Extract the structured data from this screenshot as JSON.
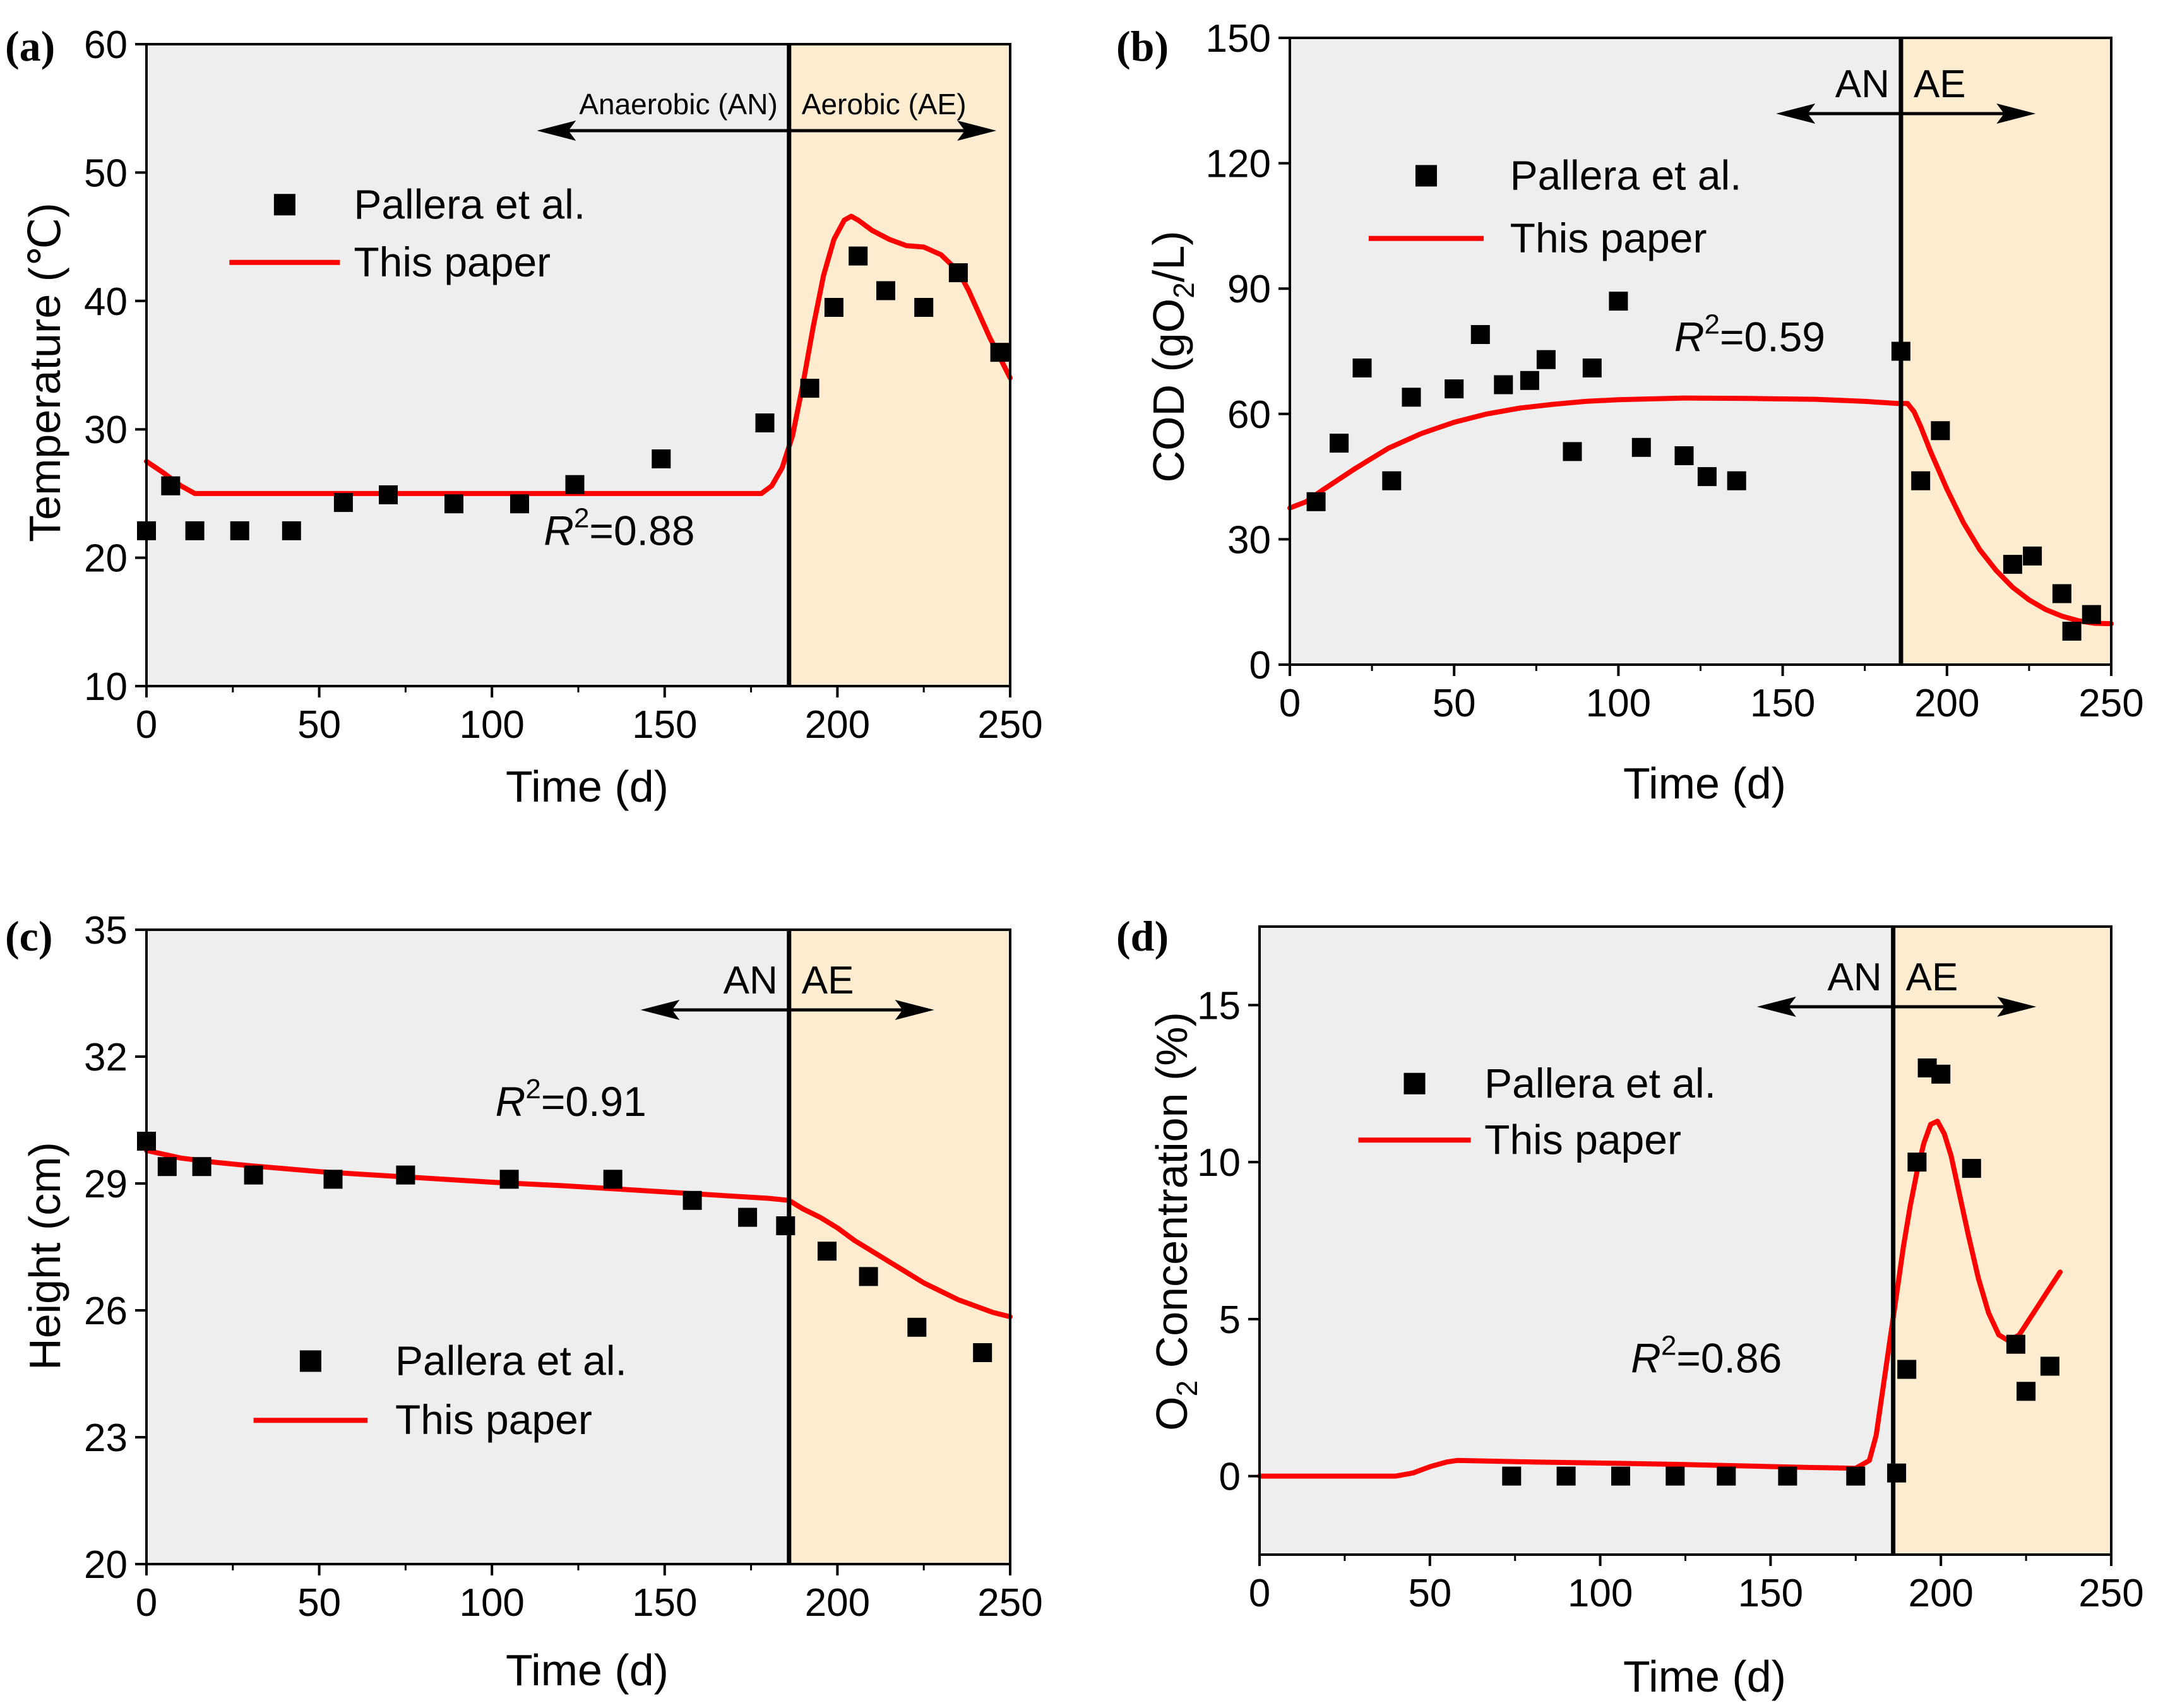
{
  "colors": {
    "an_region": "#eeeeee",
    "ae_region": "#fdecd0",
    "model_line": "#ff0000",
    "markers": "#000000"
  },
  "chart_data": [
    {
      "type": "scatter",
      "panel": "(a)",
      "xlabel": "Time (d)",
      "ylabel": "Temperature (℃)",
      "xlim": [
        0,
        250
      ],
      "ylim": [
        10,
        60
      ],
      "xticks": [
        0,
        50,
        100,
        150,
        200,
        250
      ],
      "yticks": [
        10,
        20,
        30,
        40,
        50,
        60
      ],
      "transition_x": 186,
      "arrow": {
        "from": 113,
        "to": 246,
        "left_label": "Anaerobic (AN)",
        "right_label": "Aerobic (AE)"
      },
      "r2": {
        "value": "=0.88",
        "x": 115,
        "y": 21
      },
      "legend": {
        "scatter": "Pallera et al.",
        "line": "This paper",
        "x0": 24,
        "x1": 56,
        "x2": 60,
        "y_scatter": 47.5,
        "y_line": 43
      },
      "series": [
        {
          "name": "Pallera et al.",
          "kind": "scatter",
          "x": [
            0,
            7,
            14,
            27,
            42,
            57,
            70,
            89,
            108,
            124,
            149,
            179,
            192,
            199,
            206,
            214,
            225,
            235,
            247
          ],
          "y": [
            22.1,
            25.6,
            22.1,
            22.1,
            22.1,
            24.3,
            24.9,
            24.2,
            24.2,
            25.7,
            27.7,
            30.5,
            33.2,
            39.5,
            43.5,
            40.8,
            39.5,
            42.2,
            36.0
          ]
        },
        {
          "name": "This paper",
          "kind": "line",
          "x": [
            0,
            5,
            10,
            14,
            20,
            60,
            100,
            140,
            170,
            178,
            181,
            184,
            187,
            190,
            193,
            196,
            199,
            202,
            204,
            206,
            210,
            215,
            220,
            225,
            230,
            235,
            238,
            241,
            244,
            247,
            250
          ],
          "y": [
            27.5,
            26.6,
            25.6,
            25.0,
            25.0,
            25.0,
            25.0,
            25.0,
            25.0,
            25.0,
            25.6,
            27.0,
            29.5,
            33.5,
            38.0,
            42.0,
            44.8,
            46.3,
            46.6,
            46.3,
            45.5,
            44.8,
            44.3,
            44.2,
            43.6,
            42.3,
            40.8,
            39.0,
            37.2,
            35.6,
            34.0
          ]
        }
      ]
    },
    {
      "type": "scatter",
      "panel": "(b)",
      "xlabel": "Time (d)",
      "ylabel": "COD (gO2/L)",
      "xlim": [
        0,
        250
      ],
      "ylim": [
        0,
        150
      ],
      "xticks": [
        0,
        50,
        100,
        150,
        200,
        250
      ],
      "yticks": [
        0,
        30,
        60,
        90,
        120,
        150
      ],
      "transition_x": 186,
      "arrow": {
        "from": 148,
        "to": 227,
        "left_label": "AN",
        "right_label": "AE"
      },
      "r2": {
        "value": "=0.59",
        "x": 117,
        "y": 75
      },
      "legend": {
        "scatter": "Pallera et al.",
        "line": "This paper",
        "x0": 24,
        "x1": 59,
        "x2": 67,
        "y_scatter": 117,
        "y_line": 102
      },
      "series": [
        {
          "name": "Pallera et al.",
          "kind": "scatter",
          "x": [
            8,
            15,
            22,
            31,
            37,
            50,
            58,
            65,
            73,
            78,
            86,
            92,
            100,
            107,
            120,
            127,
            136,
            186,
            192,
            198,
            220,
            226,
            235,
            238,
            244
          ],
          "y": [
            39,
            53,
            71,
            44,
            64,
            66,
            79,
            67,
            68,
            73,
            51,
            71,
            87,
            52,
            50,
            45,
            44,
            75,
            44,
            56,
            24,
            26,
            17,
            8,
            12
          ]
        },
        {
          "name": "This paper",
          "kind": "line",
          "x": [
            0,
            5,
            10,
            20,
            30,
            40,
            50,
            60,
            70,
            80,
            90,
            100,
            120,
            140,
            160,
            175,
            185,
            188,
            190,
            192,
            195,
            200,
            205,
            210,
            215,
            220,
            225,
            230,
            235,
            240,
            245,
            250
          ],
          "y": [
            37.5,
            39,
            41.8,
            47,
            51.8,
            55.3,
            58,
            60,
            61.4,
            62.3,
            63,
            63.4,
            63.8,
            63.7,
            63.5,
            63.0,
            62.5,
            62.5,
            60.5,
            57,
            51,
            42,
            34,
            27.5,
            22.5,
            18.5,
            15.5,
            13.2,
            11.6,
            10.5,
            9.9,
            9.8
          ]
        }
      ]
    },
    {
      "type": "scatter",
      "panel": "(c)",
      "xlabel": "Time (d)",
      "ylabel": "Height (cm)",
      "xlim": [
        0,
        250
      ],
      "ylim": [
        20,
        35
      ],
      "xticks": [
        0,
        50,
        100,
        150,
        200,
        250
      ],
      "yticks": [
        20,
        23,
        26,
        29,
        32,
        35
      ],
      "transition_x": 186,
      "arrow": {
        "from": 143,
        "to": 228,
        "left_label": "AN",
        "right_label": "AE"
      },
      "r2": {
        "value": "=0.91",
        "x": 101,
        "y": 30.6
      },
      "legend": {
        "scatter": "Pallera et al.",
        "line": "This paper",
        "x0": 31,
        "x1": 64,
        "x2": 72,
        "y_scatter": 24.8,
        "y_line": 23.4
      },
      "series": [
        {
          "name": "Pallera et al.",
          "kind": "scatter",
          "x": [
            0,
            6,
            16,
            31,
            54,
            75,
            105,
            135,
            158,
            174,
            185,
            197,
            209,
            223,
            242
          ],
          "y": [
            30.0,
            29.4,
            29.4,
            29.2,
            29.1,
            29.2,
            29.1,
            29.1,
            28.6,
            28.2,
            28.0,
            27.4,
            26.8,
            25.6,
            25.0
          ]
        },
        {
          "name": "This paper",
          "kind": "line",
          "x": [
            0,
            10,
            20,
            30,
            40,
            50,
            60,
            80,
            100,
            120,
            140,
            160,
            180,
            186,
            190,
            195,
            200,
            205,
            210,
            215,
            220,
            225,
            230,
            235,
            240,
            245,
            250
          ],
          "y": [
            29.78,
            29.6,
            29.5,
            29.42,
            29.35,
            29.28,
            29.23,
            29.13,
            29.03,
            28.95,
            28.85,
            28.75,
            28.65,
            28.6,
            28.4,
            28.2,
            27.95,
            27.65,
            27.4,
            27.15,
            26.9,
            26.65,
            26.45,
            26.25,
            26.1,
            25.95,
            25.85
          ]
        }
      ]
    },
    {
      "type": "scatter",
      "panel": "(d)",
      "xlabel": "Time (d)",
      "ylabel": "O2 Concentration (%)",
      "xlim": [
        0,
        250
      ],
      "ylim": [
        -2.5,
        17.5
      ],
      "xticks": [
        0,
        50,
        100,
        150,
        200,
        250
      ],
      "yticks": [
        0,
        5,
        10,
        15
      ],
      "transition_x": 186,
      "arrow": {
        "from": 146,
        "to": 228,
        "left_label": "AN",
        "right_label": "AE"
      },
      "r2": {
        "value": "=0.86",
        "x": 109,
        "y": 3.3
      },
      "legend": {
        "scatter": "Pallera et al.",
        "line": "This paper",
        "x0": 29,
        "x1": 62,
        "x2": 66,
        "y_scatter": 12.5,
        "y_line": 10.7
      },
      "series": [
        {
          "name": "Pallera et al.",
          "kind": "scatter",
          "x": [
            74,
            90,
            106,
            122,
            137,
            155,
            175,
            187,
            190,
            193,
            196,
            200,
            209,
            222,
            225,
            232
          ],
          "y": [
            0,
            0,
            0,
            0,
            0,
            0,
            0,
            0.1,
            3.4,
            10.0,
            13.0,
            12.8,
            9.8,
            4.2,
            2.7,
            3.5
          ]
        },
        {
          "name": "This paper",
          "kind": "line",
          "x": [
            0,
            30,
            40,
            45,
            50,
            55,
            58,
            80,
            120,
            160,
            175,
            179,
            181,
            183,
            185,
            187,
            189,
            191,
            193,
            195,
            197,
            199,
            201,
            203,
            205,
            208,
            211,
            214,
            217,
            220,
            223,
            226,
            229,
            232,
            235
          ],
          "y": [
            0,
            0,
            0,
            0.1,
            0.3,
            0.45,
            0.5,
            0.45,
            0.38,
            0.28,
            0.25,
            0.5,
            1.3,
            2.8,
            4.3,
            5.8,
            7.3,
            8.6,
            9.7,
            10.6,
            11.2,
            11.3,
            10.9,
            10.2,
            9.2,
            7.7,
            6.3,
            5.2,
            4.5,
            4.3,
            4.5,
            5.0,
            5.5,
            6.0,
            6.5
          ]
        }
      ]
    }
  ]
}
